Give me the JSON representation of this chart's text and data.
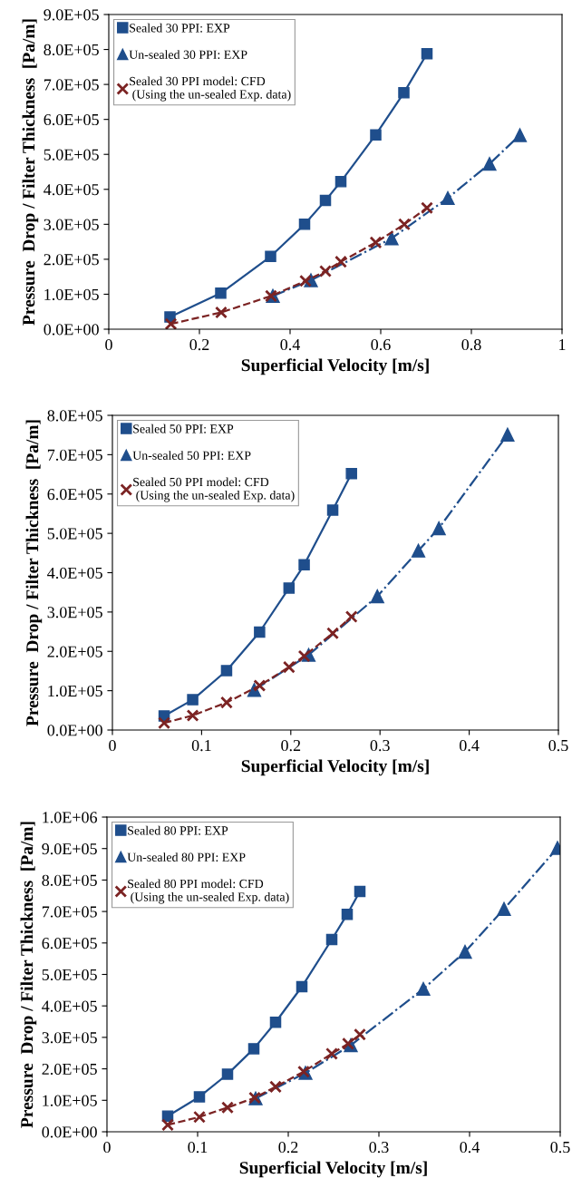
{
  "chart_data": [
    {
      "type": "line",
      "xlabel": "Superficial Velocity [m/s]",
      "ylabel": "Pressure  Drop / Filter Thickness  [Pa/m]",
      "xlim": [
        0,
        1
      ],
      "xticks": [
        0,
        0.2,
        0.4,
        0.6,
        0.8,
        1
      ],
      "ylim": [
        0,
        900000
      ],
      "yticks": [
        {
          "value": 0,
          "label": "0.0E+00"
        },
        {
          "value": 100000,
          "label": "1.0E+05"
        },
        {
          "value": 200000,
          "label": "2.0E+05"
        },
        {
          "value": 300000,
          "label": "3.0E+05"
        },
        {
          "value": 400000,
          "label": "4.0E+05"
        },
        {
          "value": 500000,
          "label": "5.0E+05"
        },
        {
          "value": 600000,
          "label": "6.0E+05"
        },
        {
          "value": 700000,
          "label": "7.0E+05"
        },
        {
          "value": 800000,
          "label": "8.0E+05"
        },
        {
          "value": 900000,
          "label": "9.0E+05"
        }
      ],
      "grid": false,
      "legend": "top left",
      "series": [
        {
          "name": "Sealed 30 PPI: EXP",
          "color": "#1f4e8c",
          "marker": "square",
          "line_style": "solid",
          "x": [
            0.135,
            0.247,
            0.357,
            0.432,
            0.478,
            0.512,
            0.589,
            0.651,
            0.702
          ],
          "values": [
            35000,
            103000,
            208000,
            300000,
            368000,
            422000,
            556000,
            676000,
            788000
          ]
        },
        {
          "name": "Un-sealed 30 PPI: EXP",
          "color": "#1f4e8c",
          "marker": "triangle",
          "line_style": "dashdot",
          "x": [
            0.362,
            0.446,
            0.624,
            0.748,
            0.84,
            0.907
          ],
          "values": [
            95000,
            140000,
            260000,
            375000,
            473000,
            555000
          ]
        },
        {
          "name": "Sealed 30 PPI model: CFD\n (Using the un-sealed Exp. data)",
          "color": "#7b2323",
          "marker": "cross",
          "line_style": "dashed",
          "x": [
            0.137,
            0.248,
            0.358,
            0.434,
            0.478,
            0.512,
            0.589,
            0.652,
            0.702
          ],
          "values": [
            15000,
            48000,
            95000,
            138000,
            166000,
            193000,
            248000,
            300000,
            347000
          ]
        }
      ]
    },
    {
      "type": "line",
      "xlabel": "Superficial Velocity [m/s]",
      "ylabel": "Pressure  Drop / Filter Thickness  [Pa/m]",
      "xlim": [
        0,
        0.5
      ],
      "xticks": [
        0,
        0.1,
        0.2,
        0.3,
        0.4,
        0.5
      ],
      "ylim": [
        0,
        800000
      ],
      "yticks": [
        {
          "value": 0,
          "label": "0.0E+00"
        },
        {
          "value": 100000,
          "label": "1.0E+05"
        },
        {
          "value": 200000,
          "label": "2.0E+05"
        },
        {
          "value": 300000,
          "label": "3.0E+05"
        },
        {
          "value": 400000,
          "label": "4.0E+05"
        },
        {
          "value": 500000,
          "label": "5.0E+05"
        },
        {
          "value": 600000,
          "label": "6.0E+05"
        },
        {
          "value": 700000,
          "label": "7.0E+05"
        },
        {
          "value": 800000,
          "label": "8.0E+05"
        }
      ],
      "grid": false,
      "legend": "top left",
      "series": [
        {
          "name": "Sealed 50 PPI: EXP",
          "color": "#1f4e8c",
          "marker": "square",
          "line_style": "solid",
          "x": [
            0.058,
            0.09,
            0.128,
            0.165,
            0.198,
            0.215,
            0.247,
            0.268
          ],
          "values": [
            36000,
            77000,
            151000,
            249000,
            361000,
            420000,
            559000,
            652000
          ]
        },
        {
          "name": "Un-sealed 50 PPI: EXP",
          "color": "#1f4e8c",
          "marker": "triangle",
          "line_style": "dashdot",
          "x": [
            0.159,
            0.22,
            0.297,
            0.343,
            0.366,
            0.443
          ],
          "values": [
            102000,
            191000,
            340000,
            456000,
            513000,
            751000
          ]
        },
        {
          "name": "Sealed 50 PPI model: CFD\n (Using the un-sealed Exp. data)",
          "color": "#7b2323",
          "marker": "cross",
          "line_style": "dashed",
          "x": [
            0.058,
            0.09,
            0.128,
            0.165,
            0.198,
            0.215,
            0.247,
            0.268
          ],
          "values": [
            18000,
            37000,
            70000,
            113000,
            160000,
            188000,
            246000,
            288000
          ]
        }
      ]
    },
    {
      "type": "line",
      "xlabel": "Superficial Velocity [m/s]",
      "ylabel": "Pressure  Drop / Filter Thickness  [Pa/m]",
      "xlim": [
        0,
        0.5
      ],
      "xticks": [
        0,
        0.1,
        0.2,
        0.3,
        0.4,
        0.5
      ],
      "ylim": [
        0,
        1000000
      ],
      "yticks": [
        {
          "value": 0,
          "label": "0.0E+00"
        },
        {
          "value": 100000,
          "label": "1.0E+05"
        },
        {
          "value": 200000,
          "label": "2.0E+05"
        },
        {
          "value": 300000,
          "label": "3.0E+05"
        },
        {
          "value": 400000,
          "label": "4.0E+05"
        },
        {
          "value": 500000,
          "label": "5.0E+05"
        },
        {
          "value": 600000,
          "label": "6.0E+05"
        },
        {
          "value": 700000,
          "label": "7.0E+05"
        },
        {
          "value": 800000,
          "label": "8.0E+05"
        },
        {
          "value": 900000,
          "label": "9.0E+05"
        },
        {
          "value": 1000000,
          "label": "1.0E+06"
        }
      ],
      "grid": false,
      "legend": "top left",
      "series": [
        {
          "name": "Sealed 80 PPI: EXP",
          "color": "#1f4e8c",
          "marker": "square",
          "line_style": "solid",
          "x": [
            0.067,
            0.102,
            0.133,
            0.162,
            0.186,
            0.215,
            0.248,
            0.265,
            0.279
          ],
          "values": [
            50000,
            111000,
            183000,
            264000,
            348000,
            461000,
            611000,
            691000,
            764000
          ]
        },
        {
          "name": "Un-sealed 80 PPI: EXP",
          "color": "#1f4e8c",
          "marker": "triangle",
          "line_style": "dashdot",
          "x": [
            0.164,
            0.219,
            0.269,
            0.349,
            0.395,
            0.438,
            0.497
          ],
          "values": [
            106000,
            187000,
            275000,
            454000,
            572000,
            708000,
            902000
          ]
        },
        {
          "name": "Sealed 80 PPI model: CFD\n (Using the un-sealed Exp. data)",
          "color": "#7b2323",
          "marker": "cross",
          "line_style": "dashed",
          "x": [
            0.067,
            0.102,
            0.133,
            0.163,
            0.186,
            0.217,
            0.248,
            0.266,
            0.279
          ],
          "values": [
            22000,
            47000,
            77000,
            108000,
            143000,
            191000,
            248000,
            280000,
            309000
          ]
        }
      ]
    }
  ]
}
